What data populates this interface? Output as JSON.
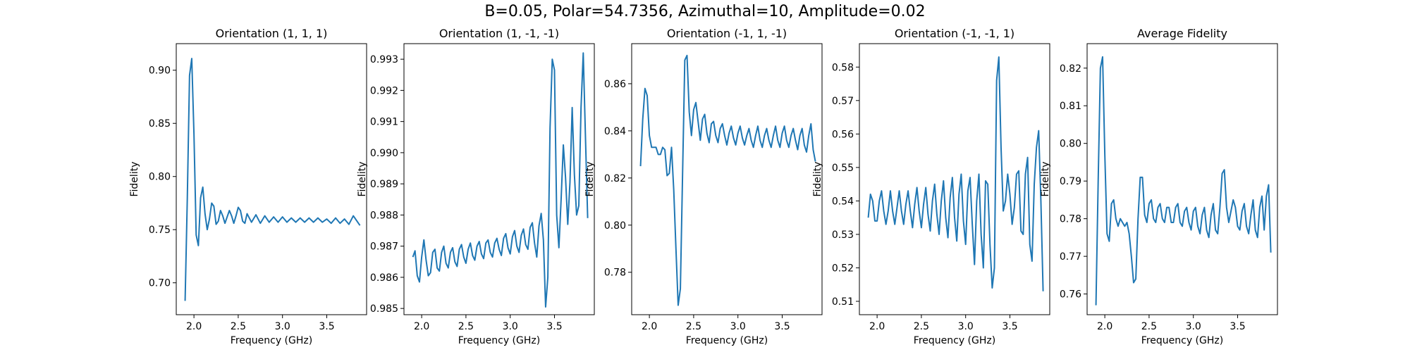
{
  "figure_title": "B=0.05, Polar=54.7356, Azimuthal=10, Amplitude=0.02",
  "line_color": "#1f77b4",
  "chart_data": [
    {
      "type": "line",
      "title": "Orientation (1, 1, 1)",
      "xlabel": "Frequency (GHz)",
      "ylabel": "Fidelity",
      "xlim": [
        1.8,
        3.95
      ],
      "ylim": [
        0.67,
        0.925
      ],
      "xticks": [
        2.0,
        2.5,
        3.0,
        3.5
      ],
      "xtick_labels": [
        "2.0",
        "2.5",
        "3.0",
        "3.5"
      ],
      "yticks": [
        0.7,
        0.75,
        0.8,
        0.85,
        0.9
      ],
      "ytick_labels": [
        "0.70",
        "0.75",
        "0.80",
        "0.85",
        "0.90"
      ],
      "series": [
        {
          "x": [
            1.9,
            1.925,
            1.95,
            1.975,
            2.0,
            2.025,
            2.05,
            2.075,
            2.1,
            2.125,
            2.15,
            2.175,
            2.2,
            2.225,
            2.25,
            2.275,
            2.3,
            2.325,
            2.35,
            2.375,
            2.4,
            2.425,
            2.45,
            2.475,
            2.5,
            2.525,
            2.55,
            2.575,
            2.6,
            2.65,
            2.7,
            2.75,
            2.8,
            2.85,
            2.9,
            2.95,
            3.0,
            3.05,
            3.1,
            3.15,
            3.2,
            3.25,
            3.3,
            3.35,
            3.4,
            3.45,
            3.5,
            3.55,
            3.6,
            3.65,
            3.7,
            3.75,
            3.8,
            3.85,
            3.875
          ],
          "y": [
            0.683,
            0.78,
            0.895,
            0.911,
            0.84,
            0.745,
            0.735,
            0.78,
            0.79,
            0.765,
            0.75,
            0.76,
            0.775,
            0.772,
            0.755,
            0.758,
            0.768,
            0.763,
            0.756,
            0.762,
            0.768,
            0.763,
            0.756,
            0.763,
            0.771,
            0.768,
            0.758,
            0.756,
            0.765,
            0.757,
            0.764,
            0.756,
            0.763,
            0.757,
            0.762,
            0.757,
            0.762,
            0.757,
            0.761,
            0.757,
            0.761,
            0.757,
            0.761,
            0.757,
            0.761,
            0.757,
            0.76,
            0.756,
            0.761,
            0.756,
            0.76,
            0.755,
            0.763,
            0.757,
            0.754
          ]
        }
      ]
    },
    {
      "type": "line",
      "title": "Orientation (1, -1, -1)",
      "xlabel": "Frequency (GHz)",
      "ylabel": "Fidelity",
      "xlim": [
        1.8,
        3.95
      ],
      "ylim": [
        0.9848,
        0.9935
      ],
      "xticks": [
        2.0,
        2.5,
        3.0,
        3.5
      ],
      "xtick_labels": [
        "2.0",
        "2.5",
        "3.0",
        "3.5"
      ],
      "yticks": [
        0.985,
        0.986,
        0.987,
        0.988,
        0.989,
        0.99,
        0.991,
        0.992,
        0.993
      ],
      "ytick_labels": [
        "0.985",
        "0.986",
        "0.987",
        "0.988",
        "0.989",
        "0.990",
        "0.991",
        "0.992",
        "0.993"
      ],
      "series": [
        {
          "x": [
            1.9,
            1.925,
            1.95,
            1.975,
            2.0,
            2.025,
            2.05,
            2.075,
            2.1,
            2.125,
            2.15,
            2.175,
            2.2,
            2.225,
            2.25,
            2.275,
            2.3,
            2.325,
            2.35,
            2.375,
            2.4,
            2.425,
            2.45,
            2.475,
            2.5,
            2.525,
            2.55,
            2.575,
            2.6,
            2.625,
            2.65,
            2.675,
            2.7,
            2.725,
            2.75,
            2.775,
            2.8,
            2.825,
            2.85,
            2.875,
            2.9,
            2.925,
            2.95,
            2.975,
            3.0,
            3.025,
            3.05,
            3.075,
            3.1,
            3.125,
            3.15,
            3.175,
            3.2,
            3.225,
            3.25,
            3.275,
            3.3,
            3.325,
            3.35,
            3.375,
            3.4,
            3.425,
            3.45,
            3.475,
            3.5,
            3.525,
            3.55,
            3.575,
            3.6,
            3.625,
            3.65,
            3.675,
            3.7,
            3.725,
            3.75,
            3.775,
            3.8,
            3.825,
            3.85,
            3.875
          ],
          "y": [
            0.98665,
            0.98685,
            0.98605,
            0.98585,
            0.98665,
            0.9872,
            0.98655,
            0.98605,
            0.98615,
            0.9868,
            0.9869,
            0.9863,
            0.9862,
            0.9868,
            0.987,
            0.98645,
            0.9863,
            0.9868,
            0.98695,
            0.9865,
            0.98635,
            0.9869,
            0.98705,
            0.98665,
            0.98645,
            0.9869,
            0.9871,
            0.9867,
            0.98655,
            0.987,
            0.98715,
            0.98675,
            0.9866,
            0.9871,
            0.9872,
            0.9868,
            0.98665,
            0.9871,
            0.98725,
            0.9869,
            0.9867,
            0.98725,
            0.9874,
            0.98695,
            0.98675,
            0.9873,
            0.9875,
            0.987,
            0.9868,
            0.98735,
            0.98755,
            0.98705,
            0.9869,
            0.9876,
            0.98775,
            0.9871,
            0.98665,
            0.98765,
            0.98805,
            0.9872,
            0.98505,
            0.986,
            0.9908,
            0.993,
            0.99265,
            0.988,
            0.98695,
            0.9885,
            0.99025,
            0.9892,
            0.9877,
            0.98905,
            0.99145,
            0.9893,
            0.988,
            0.9883,
            0.99145,
            0.9932,
            0.9905,
            0.9879
          ]
        }
      ]
    },
    {
      "type": "line",
      "title": "Orientation (-1, 1, -1)",
      "xlabel": "Frequency (GHz)",
      "ylabel": "Fidelity",
      "xlim": [
        1.8,
        3.95
      ],
      "ylim": [
        0.762,
        0.877
      ],
      "xticks": [
        2.0,
        2.5,
        3.0,
        3.5
      ],
      "xtick_labels": [
        "2.0",
        "2.5",
        "3.0",
        "3.5"
      ],
      "yticks": [
        0.78,
        0.8,
        0.82,
        0.84,
        0.86
      ],
      "ytick_labels": [
        "0.78",
        "0.80",
        "0.82",
        "0.84",
        "0.86"
      ],
      "series": [
        {
          "x": [
            1.9,
            1.925,
            1.95,
            1.975,
            2.0,
            2.025,
            2.05,
            2.075,
            2.1,
            2.125,
            2.15,
            2.175,
            2.2,
            2.225,
            2.25,
            2.275,
            2.3,
            2.325,
            2.35,
            2.375,
            2.4,
            2.425,
            2.45,
            2.475,
            2.5,
            2.525,
            2.55,
            2.575,
            2.6,
            2.625,
            2.65,
            2.675,
            2.7,
            2.725,
            2.75,
            2.775,
            2.8,
            2.825,
            2.85,
            2.875,
            2.9,
            2.925,
            2.95,
            2.975,
            3.0,
            3.025,
            3.05,
            3.075,
            3.1,
            3.125,
            3.15,
            3.175,
            3.2,
            3.225,
            3.25,
            3.275,
            3.3,
            3.325,
            3.35,
            3.375,
            3.4,
            3.425,
            3.45,
            3.475,
            3.5,
            3.525,
            3.55,
            3.575,
            3.6,
            3.625,
            3.65,
            3.675,
            3.7,
            3.725,
            3.75,
            3.775,
            3.8,
            3.825,
            3.85,
            3.875
          ],
          "y": [
            0.825,
            0.845,
            0.858,
            0.855,
            0.838,
            0.833,
            0.833,
            0.833,
            0.83,
            0.83,
            0.833,
            0.832,
            0.821,
            0.822,
            0.833,
            0.815,
            0.79,
            0.766,
            0.773,
            0.822,
            0.87,
            0.872,
            0.848,
            0.838,
            0.849,
            0.852,
            0.844,
            0.836,
            0.845,
            0.847,
            0.839,
            0.835,
            0.843,
            0.844,
            0.838,
            0.835,
            0.841,
            0.843,
            0.838,
            0.834,
            0.839,
            0.842,
            0.837,
            0.834,
            0.839,
            0.842,
            0.837,
            0.834,
            0.838,
            0.841,
            0.836,
            0.833,
            0.838,
            0.842,
            0.836,
            0.833,
            0.838,
            0.841,
            0.836,
            0.833,
            0.838,
            0.842,
            0.836,
            0.833,
            0.839,
            0.842,
            0.836,
            0.833,
            0.838,
            0.841,
            0.836,
            0.832,
            0.838,
            0.841,
            0.834,
            0.831,
            0.838,
            0.843,
            0.832,
            0.827
          ]
        }
      ]
    },
    {
      "type": "line",
      "title": "Orientation (-1, -1, 1)",
      "xlabel": "Frequency (GHz)",
      "ylabel": "Fidelity",
      "xlim": [
        1.8,
        3.95
      ],
      "ylim": [
        0.506,
        0.587
      ],
      "xticks": [
        2.0,
        2.5,
        3.0,
        3.5
      ],
      "xtick_labels": [
        "2.0",
        "2.5",
        "3.0",
        "3.5"
      ],
      "yticks": [
        0.51,
        0.52,
        0.53,
        0.54,
        0.55,
        0.56,
        0.57,
        0.58
      ],
      "ytick_labels": [
        "0.51",
        "0.52",
        "0.53",
        "0.54",
        "0.55",
        "0.56",
        "0.57",
        "0.58"
      ],
      "series": [
        {
          "x": [
            1.9,
            1.925,
            1.95,
            1.975,
            2.0,
            2.025,
            2.05,
            2.075,
            2.1,
            2.125,
            2.15,
            2.175,
            2.2,
            2.225,
            2.25,
            2.275,
            2.3,
            2.325,
            2.35,
            2.375,
            2.4,
            2.425,
            2.45,
            2.475,
            2.5,
            2.525,
            2.55,
            2.575,
            2.6,
            2.625,
            2.65,
            2.675,
            2.7,
            2.725,
            2.75,
            2.775,
            2.8,
            2.825,
            2.85,
            2.875,
            2.9,
            2.925,
            2.95,
            2.975,
            3.0,
            3.025,
            3.05,
            3.075,
            3.1,
            3.125,
            3.15,
            3.175,
            3.2,
            3.225,
            3.25,
            3.275,
            3.3,
            3.325,
            3.35,
            3.375,
            3.4,
            3.425,
            3.45,
            3.475,
            3.5,
            3.525,
            3.55,
            3.575,
            3.6,
            3.625,
            3.65,
            3.675,
            3.7,
            3.725,
            3.75,
            3.775,
            3.8,
            3.825,
            3.85,
            3.875
          ],
          "y": [
            0.535,
            0.542,
            0.54,
            0.534,
            0.534,
            0.54,
            0.543,
            0.537,
            0.533,
            0.537,
            0.543,
            0.537,
            0.533,
            0.538,
            0.543,
            0.537,
            0.533,
            0.539,
            0.543,
            0.537,
            0.532,
            0.539,
            0.544,
            0.537,
            0.532,
            0.539,
            0.544,
            0.536,
            0.531,
            0.54,
            0.545,
            0.536,
            0.53,
            0.54,
            0.546,
            0.535,
            0.529,
            0.541,
            0.547,
            0.535,
            0.528,
            0.542,
            0.548,
            0.534,
            0.527,
            0.543,
            0.547,
            0.533,
            0.521,
            0.54,
            0.548,
            0.53,
            0.52,
            0.546,
            0.545,
            0.527,
            0.514,
            0.52,
            0.576,
            0.583,
            0.556,
            0.537,
            0.54,
            0.548,
            0.542,
            0.533,
            0.538,
            0.548,
            0.549,
            0.531,
            0.53,
            0.548,
            0.553,
            0.527,
            0.522,
            0.545,
            0.556,
            0.561,
            0.54,
            0.513
          ]
        }
      ]
    },
    {
      "type": "line",
      "title": "Average Fidelity",
      "xlabel": "Frequency (GHz)",
      "ylabel": "Fidelity",
      "xlim": [
        1.8,
        3.95
      ],
      "ylim": [
        0.7545,
        0.8265
      ],
      "xticks": [
        2.0,
        2.5,
        3.0,
        3.5
      ],
      "xtick_labels": [
        "2.0",
        "2.5",
        "3.0",
        "3.5"
      ],
      "yticks": [
        0.76,
        0.77,
        0.78,
        0.79,
        0.8,
        0.81,
        0.82
      ],
      "ytick_labels": [
        "0.76",
        "0.77",
        "0.78",
        "0.79",
        "0.80",
        "0.81",
        "0.82"
      ],
      "series": [
        {
          "x": [
            1.9,
            1.925,
            1.95,
            1.975,
            2.0,
            2.025,
            2.05,
            2.075,
            2.1,
            2.125,
            2.15,
            2.175,
            2.2,
            2.225,
            2.25,
            2.275,
            2.3,
            2.325,
            2.35,
            2.375,
            2.4,
            2.425,
            2.45,
            2.475,
            2.5,
            2.525,
            2.55,
            2.575,
            2.6,
            2.625,
            2.65,
            2.675,
            2.7,
            2.725,
            2.75,
            2.775,
            2.8,
            2.825,
            2.85,
            2.875,
            2.9,
            2.925,
            2.95,
            2.975,
            3.0,
            3.025,
            3.05,
            3.075,
            3.1,
            3.125,
            3.15,
            3.175,
            3.2,
            3.225,
            3.25,
            3.275,
            3.3,
            3.325,
            3.35,
            3.375,
            3.4,
            3.425,
            3.45,
            3.475,
            3.5,
            3.525,
            3.55,
            3.575,
            3.6,
            3.625,
            3.65,
            3.675,
            3.7,
            3.725,
            3.75,
            3.775,
            3.8,
            3.825,
            3.85,
            3.875
          ],
          "y": [
            0.757,
            0.79,
            0.82,
            0.823,
            0.797,
            0.776,
            0.774,
            0.784,
            0.785,
            0.78,
            0.778,
            0.78,
            0.779,
            0.778,
            0.779,
            0.776,
            0.77,
            0.763,
            0.764,
            0.78,
            0.791,
            0.791,
            0.781,
            0.779,
            0.784,
            0.785,
            0.78,
            0.779,
            0.783,
            0.784,
            0.78,
            0.779,
            0.783,
            0.783,
            0.779,
            0.779,
            0.783,
            0.784,
            0.779,
            0.778,
            0.782,
            0.783,
            0.779,
            0.777,
            0.782,
            0.783,
            0.778,
            0.776,
            0.781,
            0.783,
            0.777,
            0.775,
            0.781,
            0.784,
            0.777,
            0.776,
            0.783,
            0.792,
            0.793,
            0.783,
            0.779,
            0.782,
            0.785,
            0.783,
            0.778,
            0.777,
            0.782,
            0.784,
            0.778,
            0.776,
            0.781,
            0.785,
            0.777,
            0.775,
            0.783,
            0.786,
            0.777,
            0.786,
            0.789,
            0.771
          ]
        }
      ]
    }
  ]
}
